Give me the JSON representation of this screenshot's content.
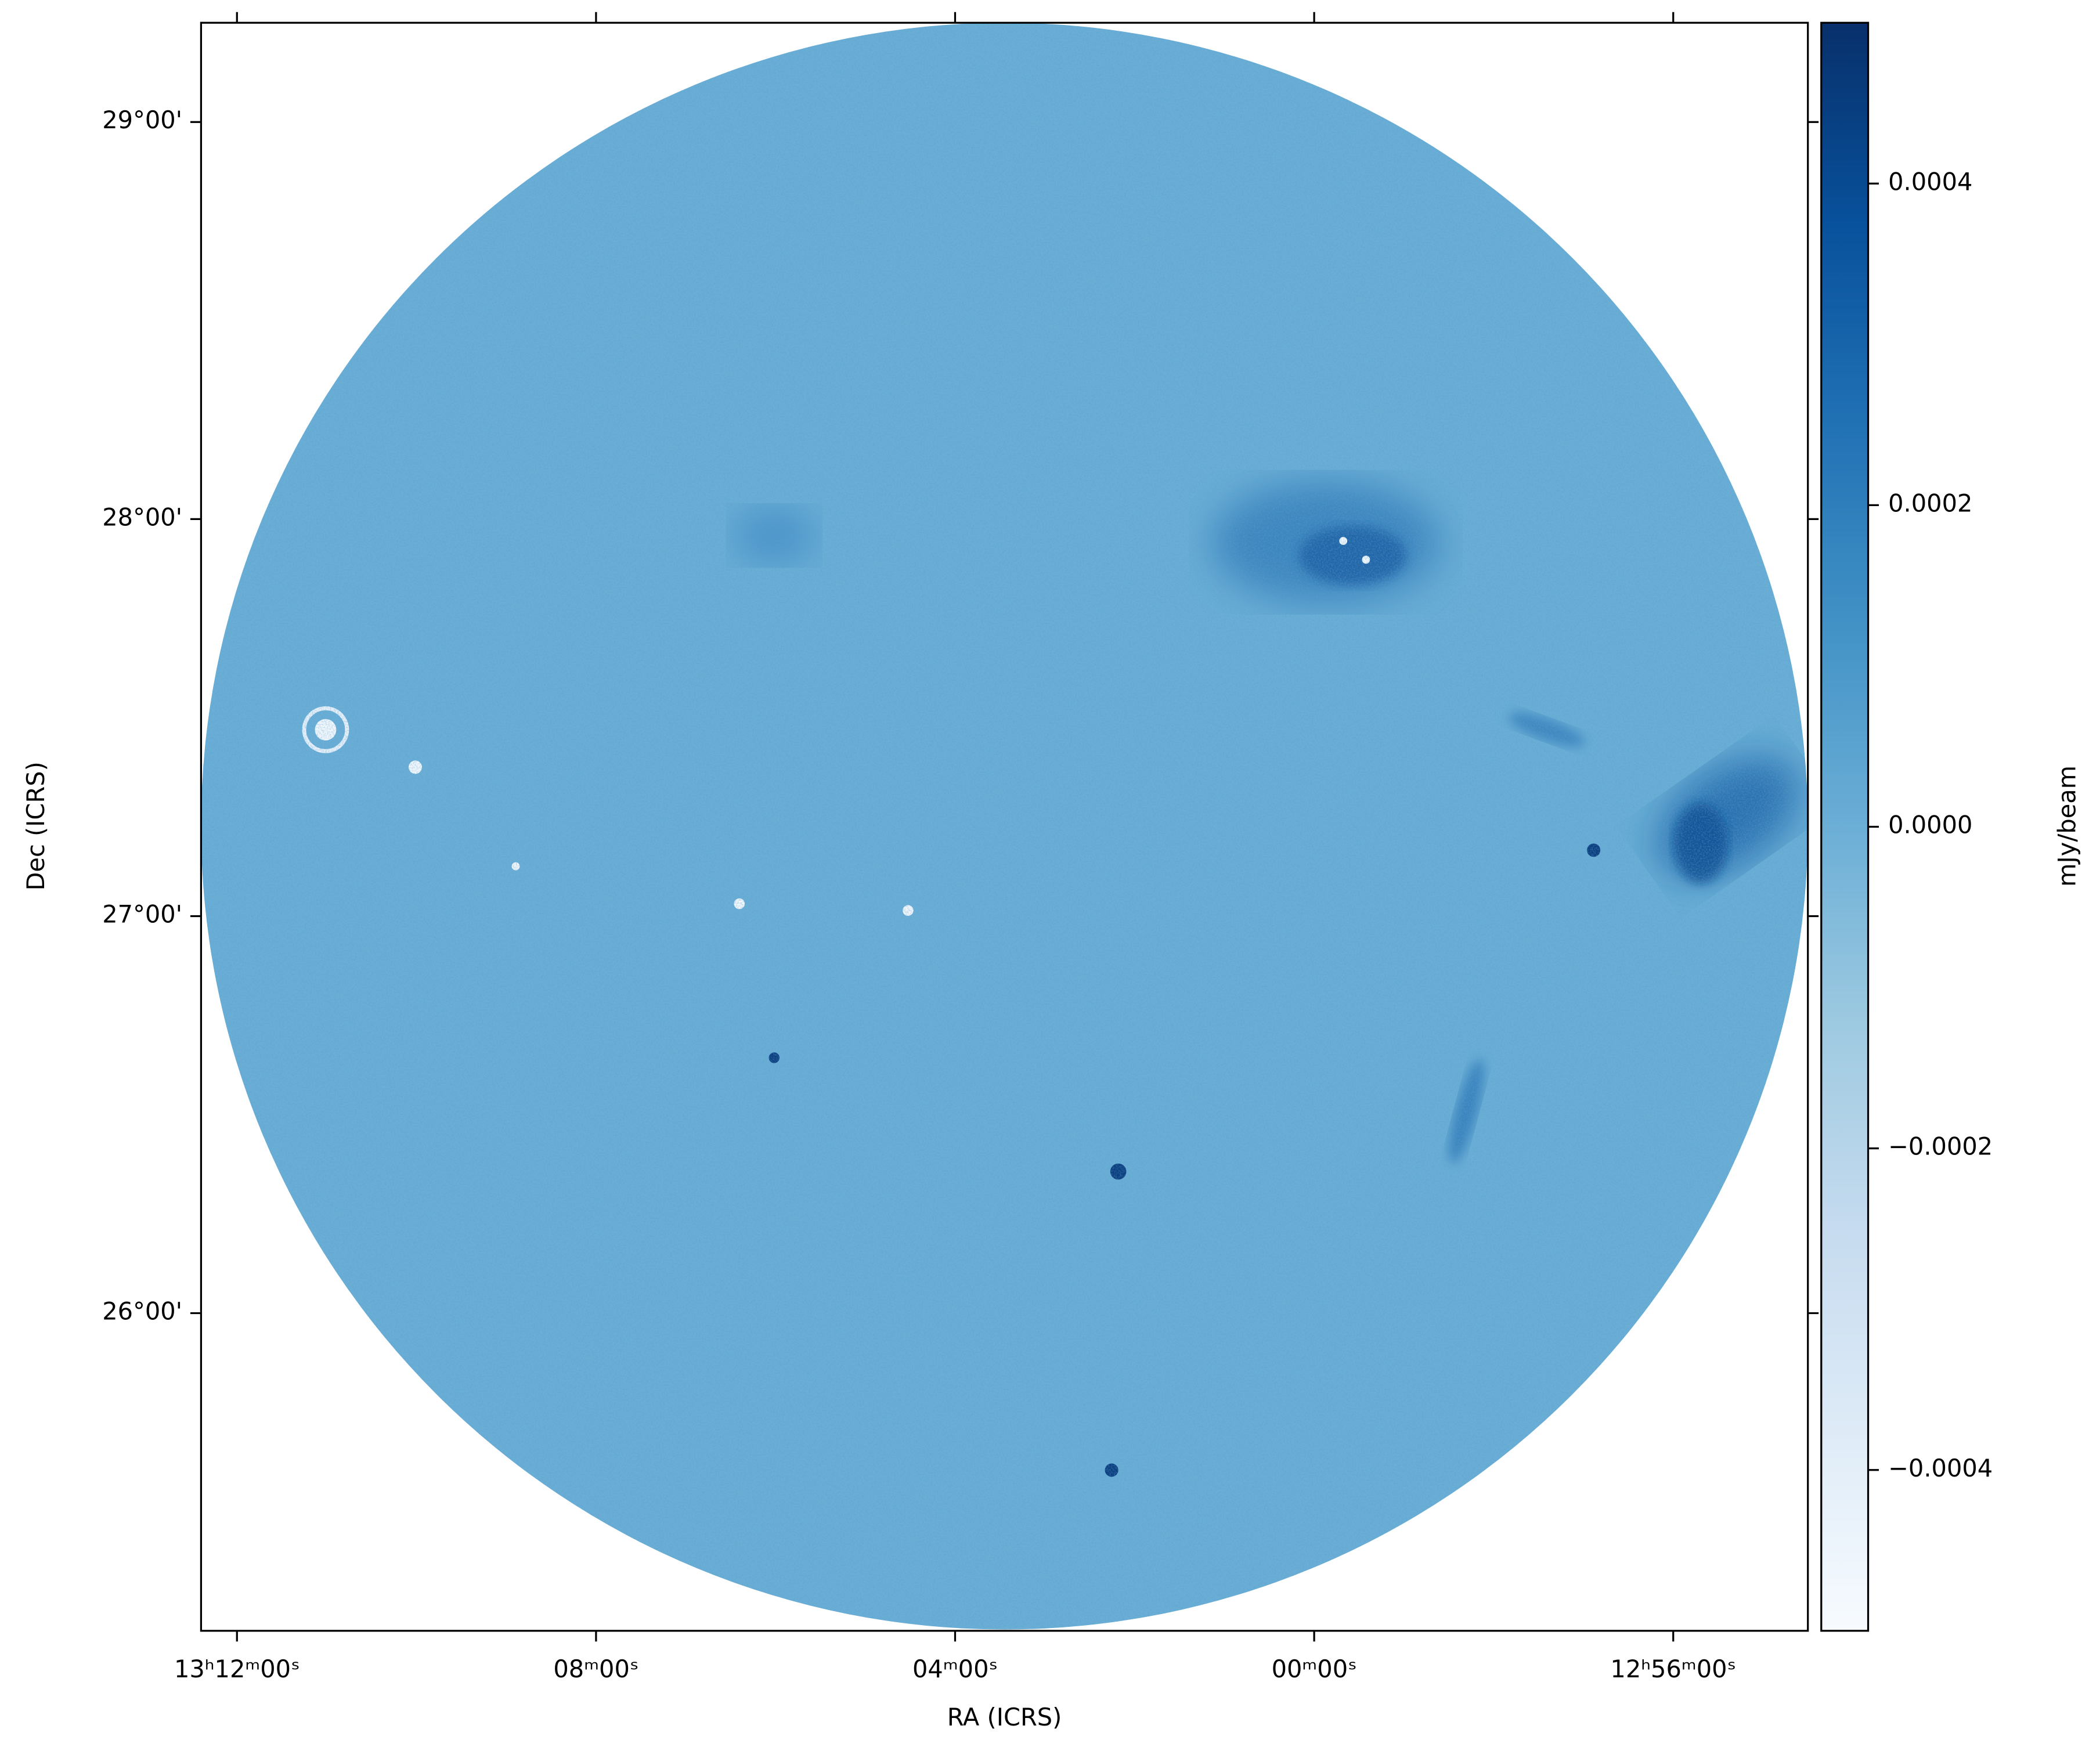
{
  "chart_data": {
    "type": "image",
    "x_label": "RA (ICRS)",
    "y_label": "Dec (ICRS)",
    "xlim": [
      792.4,
      774.5
    ],
    "xticks": [
      {
        "value": 792,
        "label": "13ʰ12ᵐ00ˢ"
      },
      {
        "value": 788,
        "label": "08ᵐ00ˢ"
      },
      {
        "value": 784,
        "label": "04ᵐ00ˢ"
      },
      {
        "value": 780,
        "label": "00ᵐ00ˢ"
      },
      {
        "value": 776,
        "label": "12ʰ56ᵐ00ˢ"
      }
    ],
    "ylim": [
      25.2,
      29.25
    ],
    "yticks": [
      {
        "value": 29,
        "label": "29°00'"
      },
      {
        "value": 28,
        "label": "28°00'"
      },
      {
        "value": 27,
        "label": "27°00'"
      },
      {
        "value": 26,
        "label": "26°00'"
      }
    ],
    "colorbar": {
      "label": "mJy/beam",
      "lim": [
        -0.0005,
        0.0005
      ],
      "ticks": [
        0.0004,
        0.0002,
        {
          "value": 0,
          "label": "0.0000"
        },
        {
          "value": -0.0002,
          "label": "−0.0002"
        },
        {
          "value": -0.0004,
          "label": "−0.0004"
        }
      ],
      "colormap": [
        "#f7fbff",
        "#deebf7",
        "#c6dbef",
        "#9ecae1",
        "#6baed6",
        "#4292c6",
        "#2171b5",
        "#08519c",
        "#08306b"
      ]
    }
  }
}
